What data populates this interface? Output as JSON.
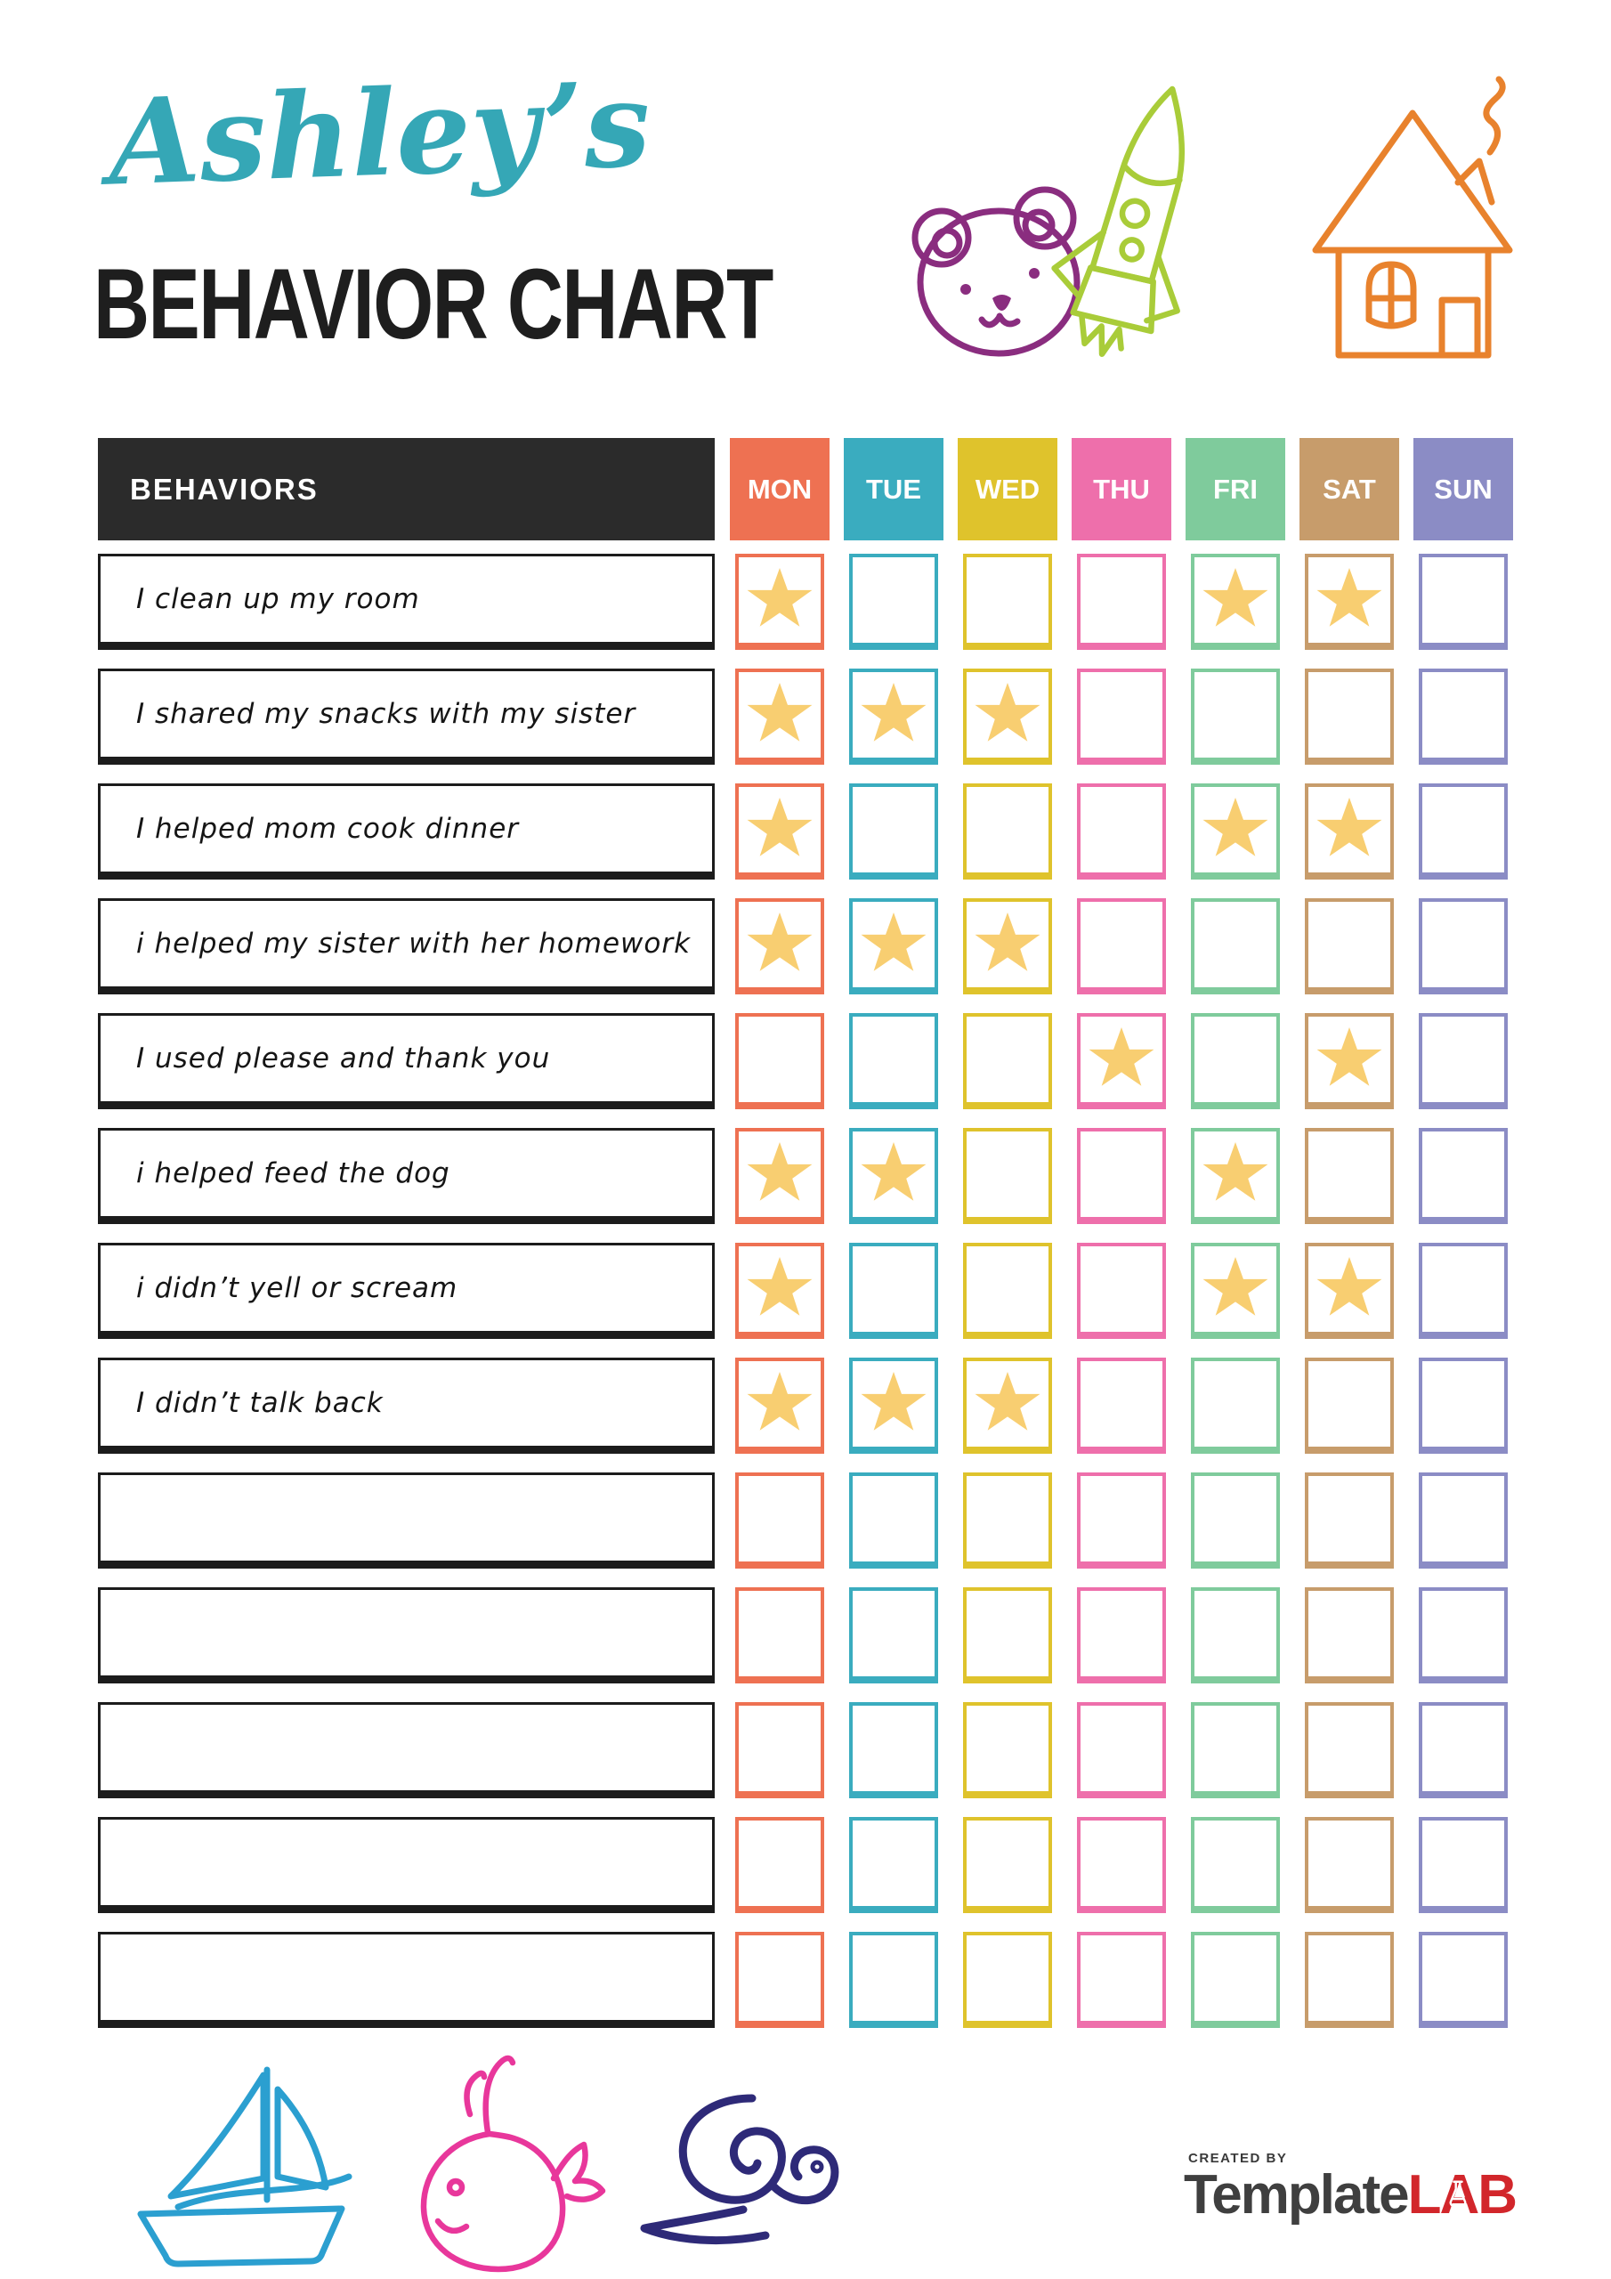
{
  "page": {
    "title_name": "Ashley’s",
    "title_heading": "BEHAVIOR CHART"
  },
  "doodles": {
    "top": [
      "bear-icon",
      "rocket-icon",
      "house-icon"
    ],
    "bottom": [
      "sailboat-icon",
      "whale-icon",
      "snail-icon"
    ],
    "colors": {
      "bear": "#8A2D7F",
      "rocket": "#A9CC39",
      "house": "#E8822D",
      "sailboat": "#2B9FD0",
      "whale": "#E8379B",
      "snail": "#2E2A78"
    }
  },
  "table": {
    "behaviors_header": "BEHAVIORS",
    "header_bg": "#2b2b2b",
    "star_color": "#F8CE71",
    "days": [
      {
        "label": "MON",
        "color": "#EE7152"
      },
      {
        "label": "TUE",
        "color": "#3AACBF"
      },
      {
        "label": "WED",
        "color": "#DFC32C"
      },
      {
        "label": "THU",
        "color": "#EE6FAB"
      },
      {
        "label": "FRI",
        "color": "#7FCB9C"
      },
      {
        "label": "SAT",
        "color": "#C79C6B"
      },
      {
        "label": "SUN",
        "color": "#8B8CC5"
      }
    ],
    "rows": [
      {
        "label": "I clean up my room",
        "stars": [
          "MON",
          "FRI",
          "SAT"
        ]
      },
      {
        "label": "I shared my snacks with my sister",
        "stars": [
          "MON",
          "TUE",
          "WED"
        ]
      },
      {
        "label": "I helped mom cook dinner",
        "stars": [
          "MON",
          "FRI",
          "SAT"
        ]
      },
      {
        "label": "i helped my sister with her homework",
        "stars": [
          "MON",
          "TUE",
          "WED"
        ]
      },
      {
        "label": "I used please and thank you",
        "stars": [
          "THU",
          "SAT"
        ]
      },
      {
        "label": "i helped feed the dog",
        "stars": [
          "MON",
          "TUE",
          "FRI"
        ]
      },
      {
        "label": "i didn’t yell or scream",
        "stars": [
          "MON",
          "FRI",
          "SAT"
        ]
      },
      {
        "label": "I didn’t talk back",
        "stars": [
          "MON",
          "TUE",
          "WED"
        ]
      },
      {
        "label": "",
        "stars": []
      },
      {
        "label": "",
        "stars": []
      },
      {
        "label": "",
        "stars": []
      },
      {
        "label": "",
        "stars": []
      },
      {
        "label": "",
        "stars": []
      }
    ]
  },
  "footer": {
    "created_by": "CREATED BY",
    "brand_part1": "Template",
    "brand_part2": "LAB"
  }
}
